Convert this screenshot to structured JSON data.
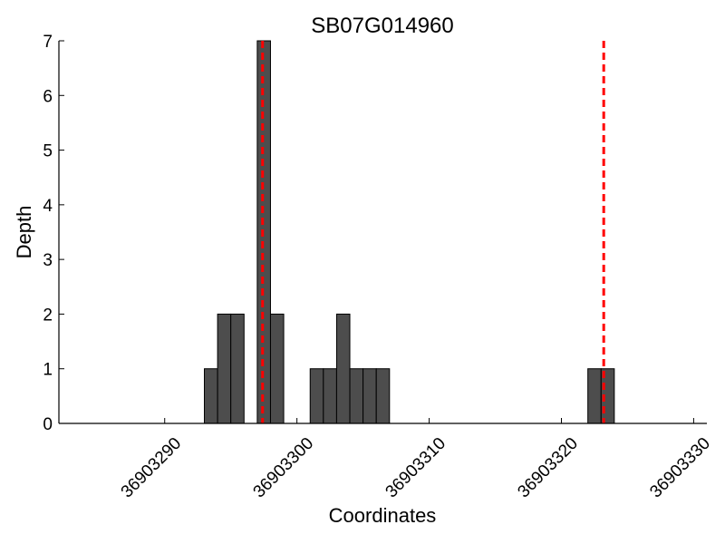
{
  "chart_data": {
    "type": "bar",
    "title": "SB07G014960",
    "xlabel": "Coordinates",
    "ylabel": "Depth",
    "xlim": [
      36903282,
      36903331
    ],
    "ylim": [
      0,
      7
    ],
    "xticks": [
      36903290,
      36903300,
      36903310,
      36903320,
      36903330
    ],
    "yticks": [
      0,
      1,
      2,
      3,
      4,
      5,
      6,
      7
    ],
    "bin_width": 1,
    "bar_color": "#4d4d4d",
    "bars": [
      {
        "x": 36903293,
        "value": 1
      },
      {
        "x": 36903294,
        "value": 2
      },
      {
        "x": 36903295,
        "value": 2
      },
      {
        "x": 36903297,
        "value": 7
      },
      {
        "x": 36903298,
        "value": 2
      },
      {
        "x": 36903301,
        "value": 1
      },
      {
        "x": 36903302,
        "value": 1
      },
      {
        "x": 36903303,
        "value": 2
      },
      {
        "x": 36903304,
        "value": 1
      },
      {
        "x": 36903305,
        "value": 1
      },
      {
        "x": 36903306,
        "value": 1
      },
      {
        "x": 36903322,
        "value": 1
      },
      {
        "x": 36903323,
        "value": 1
      }
    ],
    "markers": {
      "style": "dashed",
      "color": "#ff0000",
      "x": [
        36903297.4,
        36903323.2
      ]
    },
    "grid": false,
    "legend": "none"
  }
}
